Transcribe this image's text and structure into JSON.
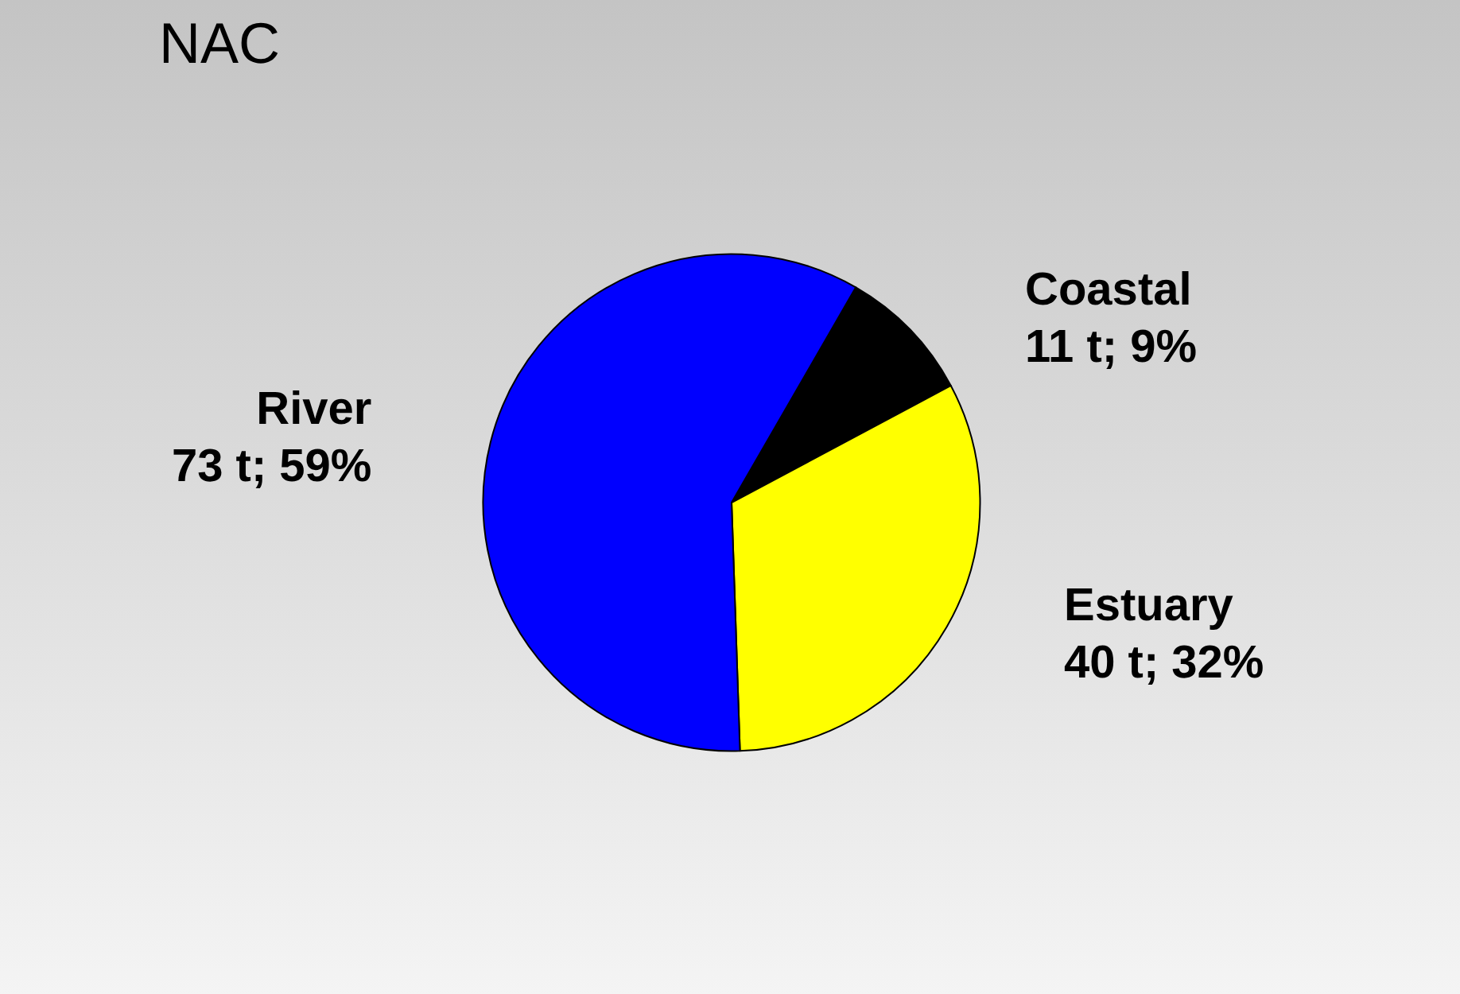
{
  "chart_data": {
    "type": "pie",
    "title": "NAC",
    "categories": [
      "Coastal",
      "Estuary",
      "River"
    ],
    "values": [
      11,
      40,
      73
    ],
    "value_labels": [
      "11 t; 9%",
      "40 t; 32%",
      "73 t; 59%"
    ],
    "colors": [
      "#000000",
      "#ffff00",
      "#0000ff"
    ],
    "legend": false
  }
}
